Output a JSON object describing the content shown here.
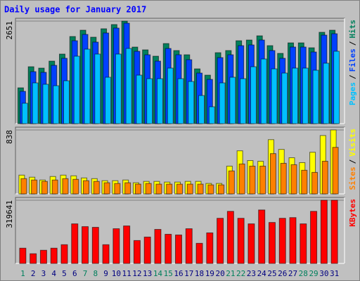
{
  "chart_data": [
    {
      "type": "bar",
      "title": "Daily usage for January 2017",
      "categories": [
        "1",
        "2",
        "3",
        "4",
        "5",
        "6",
        "7",
        "8",
        "9",
        "10",
        "11",
        "12",
        "13",
        "14",
        "15",
        "16",
        "17",
        "18",
        "19",
        "20",
        "21",
        "22",
        "23",
        "24",
        "25",
        "26",
        "27",
        "28",
        "29",
        "30",
        "31"
      ],
      "label_colors": [
        "#00805c",
        "#000080",
        "#000080",
        "#000080",
        "#000080",
        "#000080",
        "#00805c",
        "#00805c",
        "#000080",
        "#000080",
        "#000080",
        "#000080",
        "#000080",
        "#00805c",
        "#00805c",
        "#000080",
        "#000080",
        "#000080",
        "#000080",
        "#000080",
        "#00805c",
        "#00805c",
        "#000080",
        "#000080",
        "#000080",
        "#000080",
        "#000080",
        "#00805c",
        "#00805c",
        "#000080",
        "#000080"
      ],
      "ylim": [
        0,
        2651
      ],
      "yticks": [
        2651
      ],
      "grid": true,
      "separator": "/",
      "series": [
        {
          "name": "Hits",
          "color": "#00805c",
          "values": [
            926,
            1471,
            1435,
            1616,
            1798,
            2252,
            2415,
            2234,
            2452,
            2561,
            2651,
            1979,
            1907,
            1743,
            2070,
            1889,
            1780,
            1416,
            1253,
            1834,
            1889,
            2143,
            2161,
            2270,
            2016,
            1816,
            2088,
            2088,
            1961,
            2361,
            2415
          ]
        },
        {
          "name": "Files",
          "color": "#0040ff",
          "values": [
            835,
            1344,
            1326,
            1507,
            1689,
            2143,
            2306,
            2107,
            2343,
            2470,
            2597,
            1870,
            1780,
            1616,
            1943,
            1780,
            1653,
            1307,
            1144,
            1707,
            1780,
            2016,
            2034,
            2161,
            1889,
            1689,
            1980,
            1980,
            1852,
            2288,
            2324
          ]
        },
        {
          "name": "Pages",
          "color": "#00c0ff",
          "values": [
            527,
            1053,
            1017,
            980,
            1108,
            1743,
            1925,
            1798,
            1199,
            1798,
            1943,
            1253,
            1162,
            1162,
            1435,
            1162,
            1090,
            727,
            436,
            1053,
            1199,
            1162,
            1471,
            1671,
            1416,
            1307,
            1435,
            1435,
            1380,
            1562,
            1871
          ]
        }
      ]
    },
    {
      "type": "bar",
      "ylim": [
        0,
        838
      ],
      "yticks": [
        838
      ],
      "grid": true,
      "separator": "/",
      "series": [
        {
          "name": "Visits",
          "color": "#ffff00",
          "values": [
            246,
            219,
            182,
            228,
            246,
            237,
            209,
            200,
            173,
            173,
            182,
            146,
            164,
            164,
            155,
            155,
            164,
            164,
            137,
            137,
            364,
            565,
            437,
            428,
            711,
            583,
            474,
            410,
            546,
            765,
            838
          ]
        },
        {
          "name": "Sites",
          "color": "#ff8000",
          "values": [
            200,
            182,
            164,
            182,
            200,
            191,
            173,
            164,
            146,
            137,
            146,
            128,
            137,
            128,
            128,
            128,
            128,
            128,
            118,
            118,
            301,
            392,
            364,
            364,
            528,
            401,
            383,
            310,
            282,
            428,
            610
          ]
        }
      ]
    },
    {
      "type": "bar",
      "ylim": [
        0,
        319641
      ],
      "yticks": [
        319641
      ],
      "grid": true,
      "series": [
        {
          "name": "KBytes",
          "color": "#ff0000",
          "values": [
            77265,
            49169,
            66729,
            77265,
            94825,
            200185,
            186137,
            182625,
            94825,
            175601,
            189649,
            115897,
            133457,
            172089,
            147505,
            143993,
            175601,
            101849,
            154529,
            228281,
            263401,
            228281,
            200185,
            270425,
            207209,
            228281,
            231793,
            200185,
            263401,
            319641,
            319641
          ]
        }
      ]
    }
  ]
}
